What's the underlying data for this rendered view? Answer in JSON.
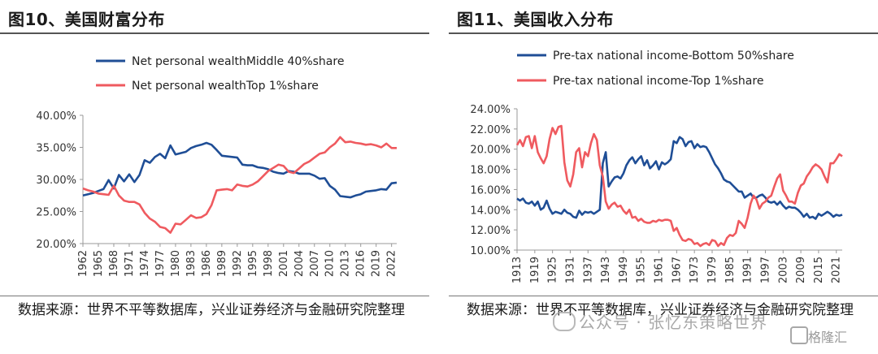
{
  "left_panel": {
    "title": "图10、美国财富分布",
    "source": "数据来源：世界不平等数据库，兴业证券经济与金融研究院整理"
  },
  "right_panel": {
    "title": "图11、美国收入分布",
    "source": "数据来源：世界不平等数据库，兴业证券经济与金融研究院整理"
  },
  "watermark": "公众号 · 张忆东策略世界",
  "brand": "格隆汇",
  "colors": {
    "blue": "#1f4e96",
    "red": "#ef5a5f"
  },
  "chart_data": [
    {
      "type": "line",
      "ylim": [
        20,
        40
      ],
      "yticks": [
        "20.00%",
        "25.00%",
        "30.00%",
        "35.00%",
        "40.00%"
      ],
      "xlim": [
        1962,
        2023
      ],
      "xticks": [
        "1962",
        "1965",
        "1968",
        "1971",
        "1974",
        "1977",
        "1980",
        "1983",
        "1986",
        "1989",
        "1992",
        "1995",
        "1998",
        "2001",
        "2004",
        "2007",
        "2010",
        "2013",
        "2016",
        "2019",
        "2022"
      ],
      "series": [
        {
          "name": "Net personal wealthMiddle 40%share",
          "color": "#1f4e96",
          "x": [
            1962,
            1963,
            1964,
            1965,
            1966,
            1967,
            1968,
            1969,
            1970,
            1971,
            1972,
            1973,
            1974,
            1975,
            1976,
            1977,
            1978,
            1979,
            1980,
            1981,
            1982,
            1983,
            1984,
            1985,
            1986,
            1987,
            1988,
            1989,
            1990,
            1991,
            1992,
            1993,
            1994,
            1995,
            1996,
            1997,
            1998,
            1999,
            2000,
            2001,
            2002,
            2003,
            2004,
            2005,
            2006,
            2007,
            2008,
            2009,
            2010,
            2011,
            2012,
            2013,
            2014,
            2015,
            2016,
            2017,
            2018,
            2019,
            2020,
            2021,
            2022,
            2023
          ],
          "values": [
            27.5,
            27.7,
            27.9,
            28.2,
            28.5,
            29.9,
            28.6,
            30.7,
            29.7,
            30.8,
            29.6,
            30.7,
            33.0,
            32.6,
            33.5,
            34.0,
            33.3,
            35.3,
            33.9,
            34.1,
            34.3,
            34.9,
            35.2,
            35.4,
            35.7,
            35.4,
            34.6,
            33.7,
            33.6,
            33.5,
            33.4,
            32.3,
            32.2,
            32.2,
            31.9,
            31.8,
            31.6,
            31.2,
            31.0,
            30.9,
            31.3,
            31.2,
            30.9,
            30.9,
            30.9,
            30.6,
            30.1,
            30.2,
            29.0,
            28.4,
            27.4,
            27.3,
            27.2,
            27.5,
            27.7,
            28.1,
            28.2,
            28.3,
            28.5,
            28.4,
            29.4,
            29.5
          ]
        },
        {
          "name": "Net personal wealthTop 1%share",
          "color": "#ef5a5f",
          "x": [
            1962,
            1963,
            1964,
            1965,
            1966,
            1967,
            1968,
            1969,
            1970,
            1971,
            1972,
            1973,
            1974,
            1975,
            1976,
            1977,
            1978,
            1979,
            1980,
            1981,
            1982,
            1983,
            1984,
            1985,
            1986,
            1987,
            1988,
            1989,
            1990,
            1991,
            1992,
            1993,
            1994,
            1995,
            1996,
            1997,
            1998,
            1999,
            2000,
            2001,
            2002,
            2003,
            2004,
            2005,
            2006,
            2007,
            2008,
            2009,
            2010,
            2011,
            2012,
            2013,
            2014,
            2015,
            2016,
            2017,
            2018,
            2019,
            2020,
            2021,
            2022,
            2023
          ],
          "values": [
            28.6,
            28.3,
            28.1,
            27.8,
            27.7,
            27.6,
            29.0,
            27.5,
            26.7,
            26.5,
            26.5,
            26.1,
            24.8,
            23.9,
            23.4,
            22.6,
            22.4,
            21.7,
            23.1,
            23.0,
            23.7,
            24.4,
            24.0,
            24.1,
            24.6,
            26.0,
            28.3,
            28.4,
            28.5,
            28.3,
            29.2,
            29.0,
            28.9,
            29.2,
            29.7,
            30.5,
            31.3,
            31.8,
            32.3,
            32.1,
            31.2,
            31.0,
            31.7,
            32.4,
            32.8,
            33.4,
            34.0,
            34.2,
            35.0,
            35.6,
            36.6,
            35.8,
            35.9,
            35.7,
            35.6,
            35.4,
            35.5,
            35.3,
            35.0,
            35.6,
            34.9,
            34.9
          ]
        }
      ]
    },
    {
      "type": "line",
      "ylim": [
        10,
        24
      ],
      "yticks": [
        "10.00%",
        "12.00%",
        "14.00%",
        "16.00%",
        "18.00%",
        "20.00%",
        "22.00%",
        "24.00%"
      ],
      "xlim": [
        1913,
        2023
      ],
      "xticks": [
        "1913",
        "1919",
        "1925",
        "1931",
        "1937",
        "1943",
        "1949",
        "1955",
        "1961",
        "1967",
        "1973",
        "1979",
        "1985",
        "1991",
        "1997",
        "2003",
        "2009",
        "2015",
        "2021"
      ],
      "series": [
        {
          "name": "Pre-tax national income-Bottom 50%share",
          "color": "#1f4e96",
          "x": [
            1913,
            1914,
            1915,
            1916,
            1917,
            1918,
            1919,
            1920,
            1921,
            1922,
            1923,
            1924,
            1925,
            1926,
            1927,
            1928,
            1929,
            1930,
            1931,
            1932,
            1933,
            1934,
            1935,
            1936,
            1937,
            1938,
            1939,
            1940,
            1941,
            1942,
            1943,
            1944,
            1945,
            1946,
            1947,
            1948,
            1949,
            1950,
            1951,
            1952,
            1953,
            1954,
            1955,
            1956,
            1957,
            1958,
            1959,
            1960,
            1961,
            1962,
            1963,
            1964,
            1965,
            1966,
            1967,
            1968,
            1969,
            1970,
            1971,
            1972,
            1973,
            1974,
            1975,
            1976,
            1977,
            1978,
            1979,
            1980,
            1981,
            1982,
            1983,
            1984,
            1985,
            1986,
            1987,
            1988,
            1989,
            1990,
            1991,
            1992,
            1993,
            1994,
            1995,
            1996,
            1997,
            1998,
            1999,
            2000,
            2001,
            2002,
            2003,
            2004,
            2005,
            2006,
            2007,
            2008,
            2009,
            2010,
            2011,
            2012,
            2013,
            2014,
            2015,
            2016,
            2017,
            2018,
            2019,
            2020,
            2021,
            2022,
            2023
          ],
          "values": [
            15.1,
            14.9,
            15.1,
            14.7,
            14.6,
            14.8,
            14.4,
            14.8,
            14.0,
            14.2,
            14.9,
            14.1,
            13.6,
            13.8,
            13.7,
            13.6,
            14.0,
            13.7,
            13.6,
            13.3,
            13.2,
            13.9,
            13.5,
            13.8,
            13.7,
            13.8,
            13.6,
            13.8,
            14.0,
            18.6,
            19.7,
            16.3,
            16.8,
            17.2,
            17.3,
            17.1,
            17.6,
            18.4,
            18.9,
            19.2,
            18.6,
            19.0,
            19.3,
            18.4,
            18.9,
            18.1,
            18.4,
            18.8,
            18.0,
            18.7,
            18.5,
            18.7,
            19.0,
            20.8,
            20.6,
            21.2,
            21.0,
            20.3,
            20.7,
            20.8,
            20.1,
            20.5,
            20.2,
            20.3,
            20.2,
            19.7,
            19.1,
            18.5,
            18.1,
            17.6,
            17.0,
            16.8,
            16.7,
            16.4,
            16.1,
            15.8,
            15.8,
            15.2,
            15.4,
            15.6,
            15.2,
            15.2,
            15.4,
            15.5,
            15.2,
            14.8,
            14.7,
            14.8,
            14.5,
            14.8,
            14.4,
            14.1,
            14.3,
            14.2,
            14.2,
            14.0,
            13.7,
            13.3,
            13.6,
            13.2,
            13.3,
            13.1,
            13.6,
            13.4,
            13.6,
            13.8,
            13.6,
            13.3,
            13.5,
            13.4,
            13.5
          ]
        },
        {
          "name": "Pre-tax national income-Top 1%share",
          "color": "#ef5a5f",
          "x": [
            1913,
            1914,
            1915,
            1916,
            1917,
            1918,
            1919,
            1920,
            1921,
            1922,
            1923,
            1924,
            1925,
            1926,
            1927,
            1928,
            1929,
            1930,
            1931,
            1932,
            1933,
            1934,
            1935,
            1936,
            1937,
            1938,
            1939,
            1940,
            1941,
            1942,
            1943,
            1944,
            1945,
            1946,
            1947,
            1948,
            1949,
            1950,
            1951,
            1952,
            1953,
            1954,
            1955,
            1956,
            1957,
            1958,
            1959,
            1960,
            1961,
            1962,
            1963,
            1964,
            1965,
            1966,
            1967,
            1968,
            1969,
            1970,
            1971,
            1972,
            1973,
            1974,
            1975,
            1976,
            1977,
            1978,
            1979,
            1980,
            1981,
            1982,
            1983,
            1984,
            1985,
            1986,
            1987,
            1988,
            1989,
            1990,
            1991,
            1992,
            1993,
            1994,
            1995,
            1996,
            1997,
            1998,
            1999,
            2000,
            2001,
            2002,
            2003,
            2004,
            2005,
            2006,
            2007,
            2008,
            2009,
            2010,
            2011,
            2012,
            2013,
            2014,
            2015,
            2016,
            2017,
            2018,
            2019,
            2020,
            2021,
            2022,
            2023
          ],
          "values": [
            20.4,
            20.9,
            20.3,
            21.2,
            21.3,
            20.1,
            21.3,
            19.7,
            19.1,
            18.6,
            19.3,
            21.0,
            22.1,
            21.5,
            22.2,
            22.3,
            18.7,
            16.9,
            16.3,
            17.5,
            19.7,
            20.1,
            18.2,
            19.7,
            19.3,
            20.6,
            21.5,
            20.9,
            18.4,
            17.3,
            14.8,
            14.1,
            14.5,
            14.7,
            14.3,
            14.4,
            13.9,
            13.6,
            14.0,
            13.2,
            13.3,
            12.9,
            13.1,
            12.8,
            12.7,
            12.7,
            12.9,
            12.8,
            13.0,
            12.9,
            13.0,
            13.0,
            12.9,
            11.9,
            12.2,
            11.5,
            11.0,
            10.9,
            11.1,
            11.0,
            10.6,
            10.7,
            10.4,
            10.6,
            10.7,
            10.5,
            11.0,
            10.9,
            10.4,
            10.7,
            10.5,
            11.2,
            11.5,
            11.4,
            11.7,
            12.9,
            12.6,
            12.2,
            13.2,
            14.6,
            15.4,
            15.0,
            14.1,
            14.6,
            14.8,
            15.2,
            15.4,
            16.3,
            17.1,
            17.5,
            15.9,
            15.4,
            14.8,
            14.8,
            14.6,
            15.7,
            16.4,
            16.6,
            17.3,
            17.7,
            18.2,
            18.5,
            18.3,
            18.0,
            17.3,
            16.7,
            18.6,
            18.6,
            19.0,
            19.5,
            19.3
          ]
        }
      ]
    }
  ]
}
